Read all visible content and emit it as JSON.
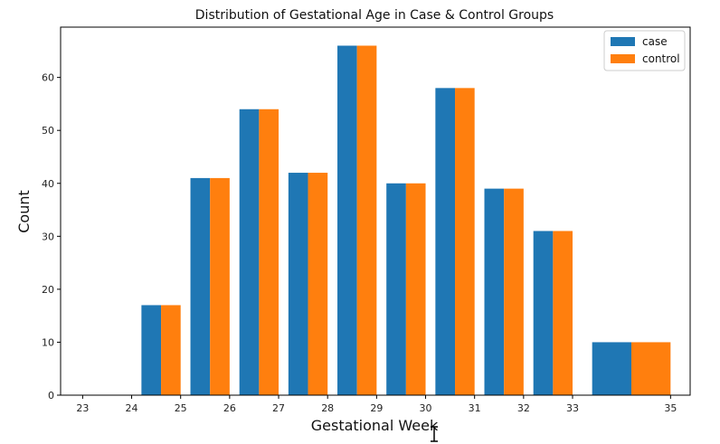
{
  "chart_data": {
    "type": "bar",
    "title": "Distribution of Gestational Age in Case & Control Groups",
    "xlabel": "Gestational Week",
    "ylabel": "Count",
    "xlim": [
      22.55,
      35.4
    ],
    "ylim": [
      0,
      69.5
    ],
    "x_ticks": [
      23,
      24,
      25,
      26,
      27,
      28,
      29,
      30,
      31,
      32,
      33,
      35
    ],
    "y_ticks": [
      0,
      10,
      20,
      30,
      40,
      50,
      60
    ],
    "bin_edges": [
      24,
      25,
      26,
      27,
      28,
      29,
      30,
      31,
      32,
      33,
      35
    ],
    "series": [
      {
        "name": "case",
        "color": "#1f77b4",
        "values": [
          17,
          41,
          54,
          42,
          66,
          40,
          58,
          39,
          31,
          10
        ]
      },
      {
        "name": "control",
        "color": "#ff7f0e",
        "values": [
          17,
          41,
          54,
          42,
          66,
          40,
          58,
          39,
          31,
          10
        ]
      }
    ],
    "legend": {
      "position": "top-right",
      "entries": [
        "case",
        "control"
      ]
    },
    "grid": false
  }
}
